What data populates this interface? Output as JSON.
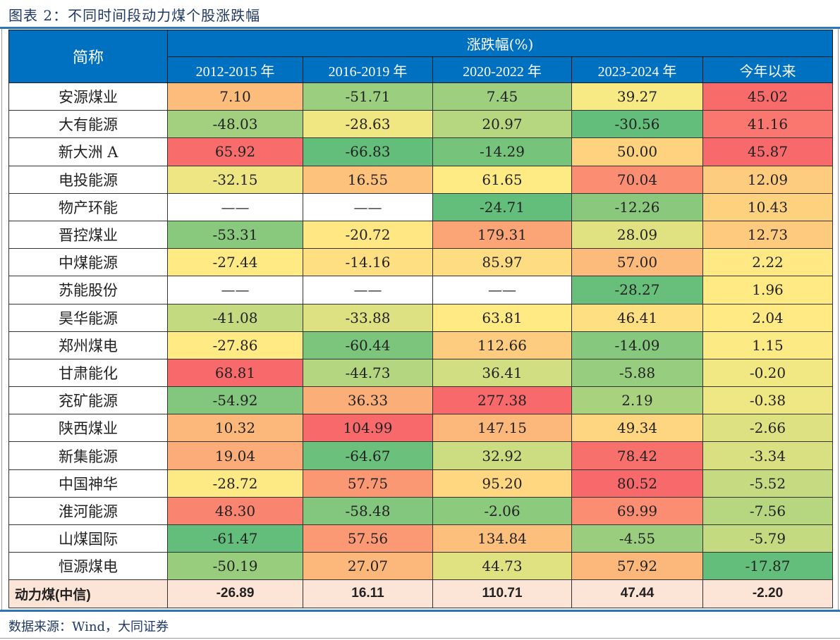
{
  "title": "图表 2：不同时间段动力煤个股涨跌幅",
  "header": {
    "name_col": "简称",
    "group": "涨跌幅(%)",
    "periods": [
      "2012-2015 年",
      "2016-2019 年",
      "2020-2022 年",
      "2023-2024 年",
      "今年以来"
    ]
  },
  "color_scale": {
    "low": "#63be7b",
    "mid": "#ffeb84",
    "high": "#f8696b",
    "empty": "#ffffff"
  },
  "rows": [
    {
      "name": "安源煤业",
      "values": [
        "7.10",
        "-51.71",
        "7.45",
        "39.27",
        "45.02"
      ]
    },
    {
      "name": "大有能源",
      "values": [
        "-48.03",
        "-28.63",
        "20.97",
        "-30.56",
        "41.16"
      ]
    },
    {
      "name": "新大洲 A",
      "values": [
        "65.92",
        "-66.83",
        "-14.29",
        "50.00",
        "45.87"
      ]
    },
    {
      "name": "电投能源",
      "values": [
        "-32.15",
        "16.55",
        "61.65",
        "70.04",
        "12.09"
      ]
    },
    {
      "name": "物产环能",
      "values": [
        "——",
        "——",
        "-24.71",
        "-12.26",
        "10.43"
      ]
    },
    {
      "name": "晋控煤业",
      "values": [
        "-53.31",
        "-20.72",
        "179.31",
        "28.09",
        "12.73"
      ]
    },
    {
      "name": "中煤能源",
      "values": [
        "-27.44",
        "-14.16",
        "85.97",
        "57.00",
        "2.22"
      ]
    },
    {
      "name": "苏能股份",
      "values": [
        "——",
        "——",
        "——",
        "-28.27",
        "1.96"
      ]
    },
    {
      "name": "昊华能源",
      "values": [
        "-41.08",
        "-33.88",
        "63.81",
        "46.41",
        "2.04"
      ]
    },
    {
      "name": "郑州煤电",
      "values": [
        "-27.86",
        "-60.44",
        "112.66",
        "-14.09",
        "1.15"
      ]
    },
    {
      "name": "甘肃能化",
      "values": [
        "68.81",
        "-44.73",
        "36.41",
        "-5.88",
        "-0.20"
      ]
    },
    {
      "name": "兖矿能源",
      "values": [
        "-54.92",
        "36.33",
        "277.38",
        "2.19",
        "-0.38"
      ]
    },
    {
      "name": "陕西煤业",
      "values": [
        "10.32",
        "104.99",
        "147.15",
        "49.34",
        "-2.66"
      ]
    },
    {
      "name": "新集能源",
      "values": [
        "19.04",
        "-64.67",
        "32.92",
        "78.42",
        "-3.34"
      ]
    },
    {
      "name": "中国神华",
      "values": [
        "-28.72",
        "57.75",
        "95.20",
        "80.52",
        "-5.52"
      ]
    },
    {
      "name": "淮河能源",
      "values": [
        "48.30",
        "-58.48",
        "-2.06",
        "69.99",
        "-7.56"
      ]
    },
    {
      "name": "山煤国际",
      "values": [
        "-61.47",
        "57.56",
        "134.84",
        "-4.55",
        "-5.79"
      ]
    },
    {
      "name": "恒源煤电",
      "values": [
        "-50.19",
        "27.07",
        "44.73",
        "57.92",
        "-17.87"
      ]
    }
  ],
  "total": {
    "name": "动力煤(中信)",
    "values": [
      "-26.89",
      "16.11",
      "110.71",
      "47.44",
      "-2.20"
    ]
  },
  "source": "数据来源：Wind，大同证券"
}
